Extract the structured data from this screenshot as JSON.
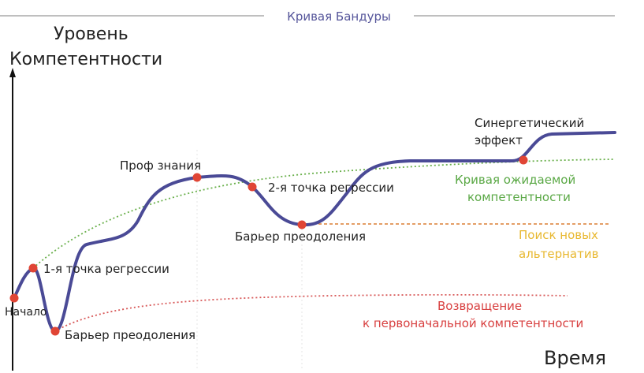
{
  "title": "Кривая Бандуры",
  "axes": {
    "y_label": [
      "Уровень",
      "Компетентности"
    ],
    "x_label": "Время"
  },
  "points": [
    {
      "label": [
        "Начало"
      ]
    },
    {
      "label": [
        "1-я точка регрессии"
      ]
    },
    {
      "label": [
        "Барьер преодоления"
      ]
    },
    {
      "label": [
        "Проф знания"
      ]
    },
    {
      "label": [
        "2-я точка регрессии"
      ]
    },
    {
      "label": [
        "Барьер преодоления"
      ]
    },
    {
      "label": [
        "Синергетический",
        "эффект"
      ]
    }
  ],
  "curves": [
    {
      "label": [
        "Кривая ожидаемой",
        "компетентности"
      ]
    },
    {
      "label": [
        "Поиск новых",
        "альтернатив"
      ]
    },
    {
      "label": [
        "Возвращение",
        "к первоначальной компетентности"
      ]
    }
  ]
}
